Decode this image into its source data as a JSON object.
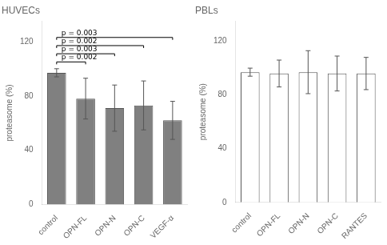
{
  "chart_data": [
    {
      "type": "bar",
      "title": "HUVECs",
      "categories": [
        "control",
        "OPN-FL",
        "OPN-N",
        "OPN-C",
        "VEGF-α"
      ],
      "values": [
        97,
        78,
        71,
        73,
        62
      ],
      "errors": [
        3,
        15,
        17,
        18,
        14
      ],
      "color": "#808080",
      "ylabel": "proteasome (%)",
      "ylim": [
        0,
        135
      ],
      "yticks": [
        0,
        40,
        80,
        120
      ],
      "grid": false,
      "brackets": [
        {
          "text": "p = 0.002",
          "from": "control",
          "to": "OPN-FL",
          "y": 105
        },
        {
          "text": "p = 0.003",
          "from": "control",
          "to": "OPN-N",
          "y": 111
        },
        {
          "text": "p = 0.002",
          "from": "control",
          "to": "OPN-C",
          "y": 117
        },
        {
          "text": "p = 0.003",
          "from": "control",
          "to": "VEGF-α",
          "y": 123
        }
      ]
    },
    {
      "type": "bar",
      "title": "PBLs",
      "categories": [
        "control",
        "OPN-FL",
        "OPN-N",
        "OPN-C",
        "RANTES"
      ],
      "values": [
        97,
        96,
        97,
        96,
        96
      ],
      "errors": [
        3,
        10,
        16,
        13,
        12
      ],
      "color": "#ffffff",
      "ylabel": "proteasome (%)",
      "ylim": [
        0,
        135
      ],
      "yticks": [
        0,
        40,
        80,
        120
      ],
      "grid": false
    }
  ]
}
